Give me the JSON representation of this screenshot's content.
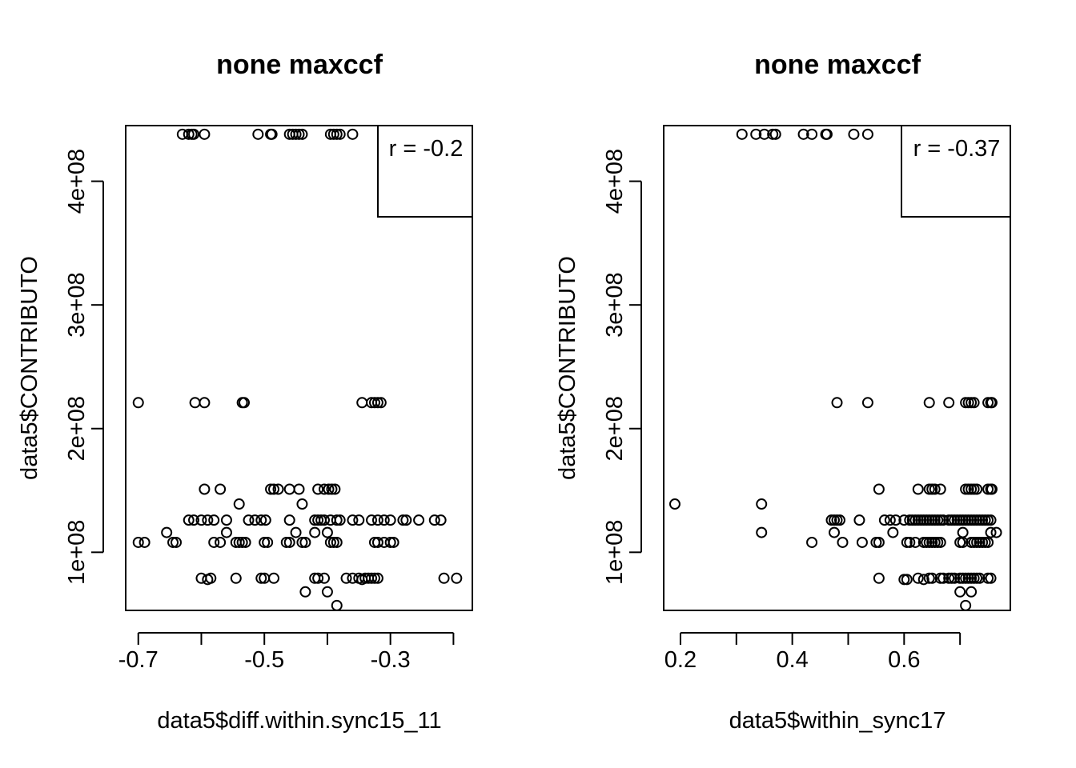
{
  "chart_data": [
    {
      "type": "scatter",
      "title": "none maxccf",
      "xlabel": "data5$diff.within.sync15_11",
      "ylabel": "data5$CONTRIBUTO",
      "xlim": [
        -0.72,
        -0.17
      ],
      "ylim": [
        53000000.0,
        445000000.0
      ],
      "xticks": [
        -0.7,
        -0.6,
        -0.5,
        -0.4,
        -0.3,
        -0.2
      ],
      "xtick_labels": [
        "-0.7",
        "",
        "-0.5",
        "",
        "-0.3",
        ""
      ],
      "yticks": [
        100000000.0,
        200000000.0,
        300000000.0,
        400000000.0
      ],
      "ytick_labels": [
        "1e+08",
        "2e+08",
        "3e+08",
        "4e+08"
      ],
      "grid": false,
      "legend": {
        "text": "r = -0.2",
        "position": "top-right"
      },
      "x": [
        -0.63,
        -0.62,
        -0.615,
        -0.612,
        -0.595,
        -0.51,
        -0.49,
        -0.488,
        -0.46,
        -0.455,
        -0.45,
        -0.445,
        -0.44,
        -0.395,
        -0.39,
        -0.385,
        -0.38,
        -0.36,
        -0.7,
        -0.61,
        -0.595,
        -0.535,
        -0.532,
        -0.345,
        -0.33,
        -0.325,
        -0.32,
        -0.315,
        -0.49,
        -0.485,
        -0.478,
        -0.46,
        -0.445,
        -0.415,
        -0.405,
        -0.398,
        -0.393,
        -0.388,
        -0.595,
        -0.57,
        -0.62,
        -0.612,
        -0.6,
        -0.59,
        -0.58,
        -0.56,
        -0.525,
        -0.515,
        -0.505,
        -0.498,
        -0.46,
        -0.42,
        -0.415,
        -0.41,
        -0.405,
        -0.395,
        -0.385,
        -0.38,
        -0.36,
        -0.35,
        -0.33,
        -0.32,
        -0.31,
        -0.3,
        -0.28,
        -0.275,
        -0.255,
        -0.23,
        -0.22,
        -0.54,
        -0.44,
        -0.655,
        -0.56,
        -0.45,
        -0.42,
        -0.4,
        -0.7,
        -0.69,
        -0.645,
        -0.64,
        -0.58,
        -0.57,
        -0.545,
        -0.54,
        -0.535,
        -0.53,
        -0.5,
        -0.495,
        -0.465,
        -0.46,
        -0.44,
        -0.435,
        -0.395,
        -0.39,
        -0.385,
        -0.325,
        -0.32,
        -0.31,
        -0.3,
        -0.295,
        -0.6,
        -0.59,
        -0.585,
        -0.545,
        -0.505,
        -0.5,
        -0.485,
        -0.42,
        -0.415,
        -0.405,
        -0.37,
        -0.36,
        -0.35,
        -0.345,
        -0.34,
        -0.335,
        -0.33,
        -0.325,
        -0.32,
        -0.215,
        -0.195,
        -0.435,
        -0.4,
        -0.385
      ],
      "y": [
        438000000.0,
        438000000.0,
        438000000.0,
        438000000.0,
        438000000.0,
        438000000.0,
        438000000.0,
        438000000.0,
        438000000.0,
        438000000.0,
        438000000.0,
        438000000.0,
        438000000.0,
        438000000.0,
        438000000.0,
        438000000.0,
        438000000.0,
        438000000.0,
        221000000.0,
        221000000.0,
        221000000.0,
        221000000.0,
        221000000.0,
        221000000.0,
        221000000.0,
        221000000.0,
        221000000.0,
        221000000.0,
        151000000.0,
        151000000.0,
        151000000.0,
        151000000.0,
        151000000.0,
        151000000.0,
        151000000.0,
        151000000.0,
        151000000.0,
        151000000.0,
        151000000.0,
        151000000.0,
        126000000.0,
        126000000.0,
        126000000.0,
        126000000.0,
        126000000.0,
        126000000.0,
        126000000.0,
        126000000.0,
        126000000.0,
        126000000.0,
        126000000.0,
        126000000.0,
        126000000.0,
        126000000.0,
        126000000.0,
        126000000.0,
        126000000.0,
        126000000.0,
        126000000.0,
        126000000.0,
        126000000.0,
        126000000.0,
        126000000.0,
        126000000.0,
        126000000.0,
        126000000.0,
        126000000.0,
        126000000.0,
        126000000.0,
        139000000.0,
        139000000.0,
        116000000.0,
        116000000.0,
        116000000.0,
        116000000.0,
        116000000.0,
        108000000.0,
        108000000.0,
        108000000.0,
        108000000.0,
        108000000.0,
        108000000.0,
        108000000.0,
        108000000.0,
        108000000.0,
        108000000.0,
        108000000.0,
        108000000.0,
        108000000.0,
        108000000.0,
        108000000.0,
        108000000.0,
        108000000.0,
        108000000.0,
        108000000.0,
        108000000.0,
        108000000.0,
        108000000.0,
        108000000.0,
        108000000.0,
        79000000.0,
        78000000.0,
        79000000.0,
        79000000.0,
        79000000.0,
        79000000.0,
        79000000.0,
        79000000.0,
        79000000.0,
        79000000.0,
        79000000.0,
        79000000.0,
        79000000.0,
        78000000.0,
        79000000.0,
        79000000.0,
        79000000.0,
        79000000.0,
        79000000.0,
        79000000.0,
        79000000.0,
        68000000.0,
        68000000.0,
        57000000.0
      ]
    },
    {
      "type": "scatter",
      "title": "none maxccf",
      "xlabel": "data5$within_sync17",
      "ylabel": "data5$CONTRIBUTO",
      "xlim": [
        0.17,
        0.79
      ],
      "ylim": [
        53000000.0,
        445000000.0
      ],
      "xticks": [
        0.2,
        0.3,
        0.4,
        0.5,
        0.6,
        0.7
      ],
      "xtick_labels": [
        "0.2",
        "",
        "0.4",
        "",
        "0.6",
        ""
      ],
      "yticks": [
        100000000.0,
        200000000.0,
        300000000.0,
        400000000.0
      ],
      "ytick_labels": [
        "1e+08",
        "2e+08",
        "3e+08",
        "4e+08"
      ],
      "grid": false,
      "legend": {
        "text": "r = -0.37",
        "position": "top-right"
      },
      "x": [
        0.31,
        0.335,
        0.35,
        0.365,
        0.37,
        0.42,
        0.435,
        0.46,
        0.462,
        0.51,
        0.535,
        0.48,
        0.535,
        0.645,
        0.68,
        0.71,
        0.715,
        0.72,
        0.725,
        0.75,
        0.755,
        0.757,
        0.555,
        0.625,
        0.645,
        0.65,
        0.655,
        0.665,
        0.71,
        0.715,
        0.72,
        0.725,
        0.73,
        0.75,
        0.755,
        0.757,
        0.19,
        0.345,
        0.47,
        0.475,
        0.48,
        0.485,
        0.52,
        0.565,
        0.575,
        0.585,
        0.6,
        0.61,
        0.615,
        0.62,
        0.625,
        0.63,
        0.635,
        0.64,
        0.645,
        0.65,
        0.655,
        0.66,
        0.665,
        0.67,
        0.68,
        0.685,
        0.69,
        0.695,
        0.7,
        0.705,
        0.71,
        0.715,
        0.72,
        0.725,
        0.73,
        0.735,
        0.74,
        0.745,
        0.75,
        0.755,
        0.345,
        0.475,
        0.58,
        0.705,
        0.755,
        0.765,
        0.435,
        0.49,
        0.525,
        0.55,
        0.555,
        0.605,
        0.61,
        0.62,
        0.635,
        0.64,
        0.645,
        0.65,
        0.655,
        0.66,
        0.665,
        0.7,
        0.705,
        0.72,
        0.725,
        0.73,
        0.735,
        0.74,
        0.745,
        0.75,
        0.555,
        0.6,
        0.605,
        0.625,
        0.635,
        0.645,
        0.65,
        0.665,
        0.67,
        0.68,
        0.685,
        0.69,
        0.7,
        0.705,
        0.71,
        0.715,
        0.72,
        0.725,
        0.73,
        0.735,
        0.75,
        0.755,
        0.7,
        0.72,
        0.71
      ],
      "y": [
        438000000.0,
        438000000.0,
        438000000.0,
        438000000.0,
        438000000.0,
        438000000.0,
        438000000.0,
        438000000.0,
        438000000.0,
        438000000.0,
        438000000.0,
        221000000.0,
        221000000.0,
        221000000.0,
        221000000.0,
        221000000.0,
        221000000.0,
        221000000.0,
        221000000.0,
        221000000.0,
        221000000.0,
        221000000.0,
        151000000.0,
        151000000.0,
        151000000.0,
        151000000.0,
        151000000.0,
        151000000.0,
        151000000.0,
        151000000.0,
        151000000.0,
        151000000.0,
        151000000.0,
        151000000.0,
        151000000.0,
        151000000.0,
        139000000.0,
        139000000.0,
        126000000.0,
        126000000.0,
        126000000.0,
        126000000.0,
        126000000.0,
        126000000.0,
        126000000.0,
        126000000.0,
        126000000.0,
        126000000.0,
        126000000.0,
        126000000.0,
        126000000.0,
        126000000.0,
        126000000.0,
        126000000.0,
        126000000.0,
        126000000.0,
        126000000.0,
        126000000.0,
        126000000.0,
        126000000.0,
        126000000.0,
        126000000.0,
        126000000.0,
        126000000.0,
        126000000.0,
        126000000.0,
        126000000.0,
        126000000.0,
        126000000.0,
        126000000.0,
        126000000.0,
        126000000.0,
        126000000.0,
        126000000.0,
        126000000.0,
        126000000.0,
        116000000.0,
        116000000.0,
        116000000.0,
        116000000.0,
        116000000.0,
        116000000.0,
        108000000.0,
        108000000.0,
        108000000.0,
        108000000.0,
        108000000.0,
        108000000.0,
        108000000.0,
        108000000.0,
        108000000.0,
        108000000.0,
        108000000.0,
        108000000.0,
        108000000.0,
        108000000.0,
        108000000.0,
        108000000.0,
        108000000.0,
        108000000.0,
        108000000.0,
        108000000.0,
        108000000.0,
        108000000.0,
        108000000.0,
        108000000.0,
        79000000.0,
        78000000.0,
        78000000.0,
        79000000.0,
        78000000.0,
        79000000.0,
        79000000.0,
        79000000.0,
        79000000.0,
        79000000.0,
        79000000.0,
        79000000.0,
        79000000.0,
        79000000.0,
        79000000.0,
        79000000.0,
        79000000.0,
        79000000.0,
        79000000.0,
        79000000.0,
        79000000.0,
        79000000.0,
        68000000.0,
        68000000.0,
        57000000.0
      ]
    }
  ]
}
